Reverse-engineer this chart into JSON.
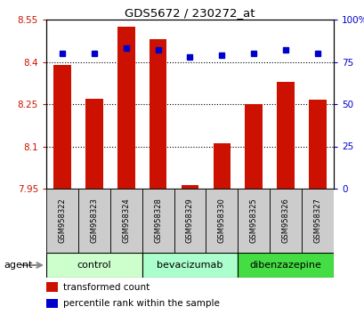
{
  "title": "GDS5672 / 230272_at",
  "samples": [
    "GSM958322",
    "GSM958323",
    "GSM958324",
    "GSM958328",
    "GSM958329",
    "GSM958330",
    "GSM958325",
    "GSM958326",
    "GSM958327"
  ],
  "transformed_counts": [
    8.39,
    8.27,
    8.525,
    8.48,
    7.962,
    8.11,
    8.25,
    8.33,
    8.265
  ],
  "percentile_ranks": [
    80,
    80,
    83,
    82,
    78,
    79,
    80,
    82,
    80
  ],
  "bar_color": "#cc1100",
  "dot_color": "#0000cc",
  "ymin": 7.95,
  "ymax": 8.55,
  "y2min": 0,
  "y2max": 100,
  "yticks": [
    7.95,
    8.1,
    8.25,
    8.4,
    8.55
  ],
  "ytick_labels": [
    "7.95",
    "8.1",
    "8.25",
    "8.4",
    "8.55"
  ],
  "y2ticks": [
    0,
    25,
    50,
    75,
    100
  ],
  "y2tick_labels": [
    "0",
    "25",
    "50",
    "75",
    "100%"
  ],
  "group_defs": [
    [
      0,
      3,
      "control",
      "#ccffcc"
    ],
    [
      3,
      6,
      "bevacizumab",
      "#aaffcc"
    ],
    [
      6,
      9,
      "dibenzazepine",
      "#44dd44"
    ]
  ],
  "agent_label": "agent",
  "legend_bar_label": "transformed count",
  "legend_dot_label": "percentile rank within the sample",
  "bar_width": 0.55,
  "tick_label_color_left": "#cc1100",
  "tick_label_color_right": "#0000cc",
  "bg_plot": "#ffffff",
  "bg_xtick": "#cccccc",
  "grid_yticks": [
    8.1,
    8.25,
    8.4
  ]
}
